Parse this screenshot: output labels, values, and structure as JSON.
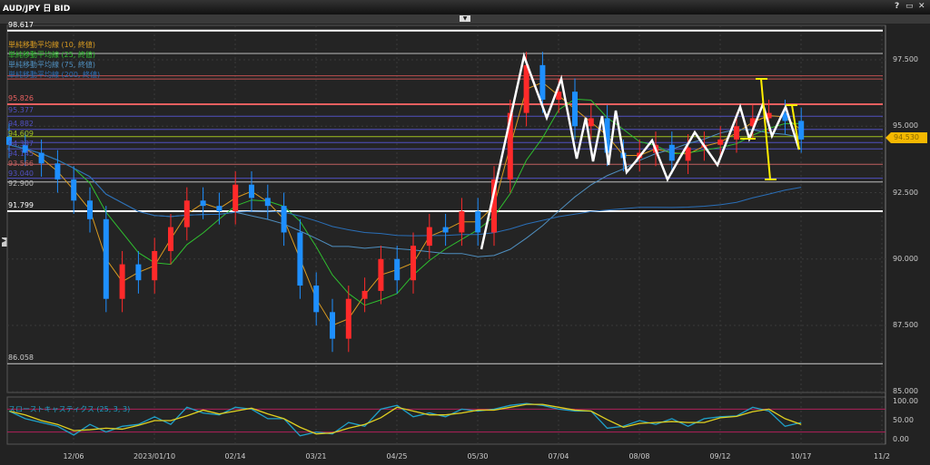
{
  "window": {
    "title": "AUD/JPY 日 BID",
    "help": "?",
    "maximize": "▭",
    "close": "✕"
  },
  "legend": [
    {
      "label": "単純移動平均線 (10, 終値)",
      "color": "#d89a20"
    },
    {
      "label": "単純移動平均線 (25, 終値)",
      "color": "#2fbf2f"
    },
    {
      "label": "単純移動平均線 (75, 終値)",
      "color": "#4f8fc0"
    },
    {
      "label": "単純移動平均線 (200, 終値)",
      "color": "#2a6fb8"
    }
  ],
  "levels": [
    {
      "label": "98.617",
      "price": 98.6,
      "color": "#ffffff"
    },
    {
      "label": "",
      "price": 97.74,
      "color": "#bbbbbb"
    },
    {
      "label": "",
      "price": 96.9,
      "color": "#c05050"
    },
    {
      "label": "",
      "price": 96.78,
      "color": "#c05050"
    },
    {
      "label": "95.826",
      "price": 95.826,
      "color": "#e86060"
    },
    {
      "label": "95.377",
      "price": 95.377,
      "color": "#5050c0"
    },
    {
      "label": "94.882",
      "price": 94.882,
      "color": "#5050c0"
    },
    {
      "label": "94.609",
      "price": 94.609,
      "color": "#a0c020"
    },
    {
      "label": "94.387",
      "price": 94.387,
      "color": "#5050c0"
    },
    {
      "label": "94.145",
      "price": 94.145,
      "color": "#5050c0"
    },
    {
      "label": "93.566",
      "price": 93.566,
      "color": "#c06060"
    },
    {
      "label": "93.040",
      "price": 93.04,
      "color": "#5050c0"
    },
    {
      "label": "92.900",
      "price": 92.9,
      "color": "#bbbbbb"
    },
    {
      "label": "91.799",
      "price": 91.799,
      "color": "#ffffff"
    },
    {
      "label": "86.058",
      "price": 86.058,
      "color": "#cccccc"
    }
  ],
  "current_price": "94.530",
  "chart_data": {
    "type": "candlestick",
    "title": "AUD/JPY 日 BID",
    "y_ticks": [
      "97.500",
      "95.000",
      "92.500",
      "90.000",
      "87.500",
      "85.000"
    ],
    "ylim": [
      84.9,
      98.8
    ],
    "x_ticks": [
      "12/06",
      "2023/01/10",
      "02/14",
      "03/21",
      "04/25",
      "05/30",
      "07/04",
      "08/08",
      "09/12",
      "10/17",
      "11/2"
    ],
    "close_weekly": [
      94.3,
      94.0,
      93.6,
      93.0,
      92.2,
      91.5,
      88.5,
      89.8,
      89.2,
      90.3,
      91.2,
      92.2,
      92.0,
      91.8,
      92.8,
      92.3,
      92.0,
      91.0,
      89.0,
      88.0,
      87.0,
      88.5,
      88.8,
      90.0,
      89.2,
      90.5,
      91.2,
      91.0,
      91.8,
      91.0,
      93.0,
      95.5,
      97.3,
      96.0,
      96.3,
      95.0,
      95.3,
      94.0,
      93.8,
      94.0,
      94.3,
      93.7,
      94.2,
      94.3,
      94.5,
      95.0,
      95.3,
      95.5,
      95.2,
      94.5
    ],
    "stochastics": {
      "label": "スローストキャスティクス (25, 3, 3)",
      "y_ticks": [
        "100.00",
        "50.00",
        "0.00"
      ],
      "levels": [
        80,
        20
      ],
      "values": [
        75,
        55,
        45,
        35,
        12,
        40,
        20,
        35,
        40,
        60,
        40,
        85,
        70,
        65,
        85,
        80,
        55,
        55,
        10,
        20,
        15,
        45,
        35,
        80,
        90,
        60,
        70,
        60,
        80,
        75,
        80,
        90,
        95,
        90,
        80,
        75,
        75,
        30,
        35,
        50,
        40,
        55,
        35,
        55,
        60,
        62,
        85,
        75,
        35,
        45
      ]
    }
  }
}
